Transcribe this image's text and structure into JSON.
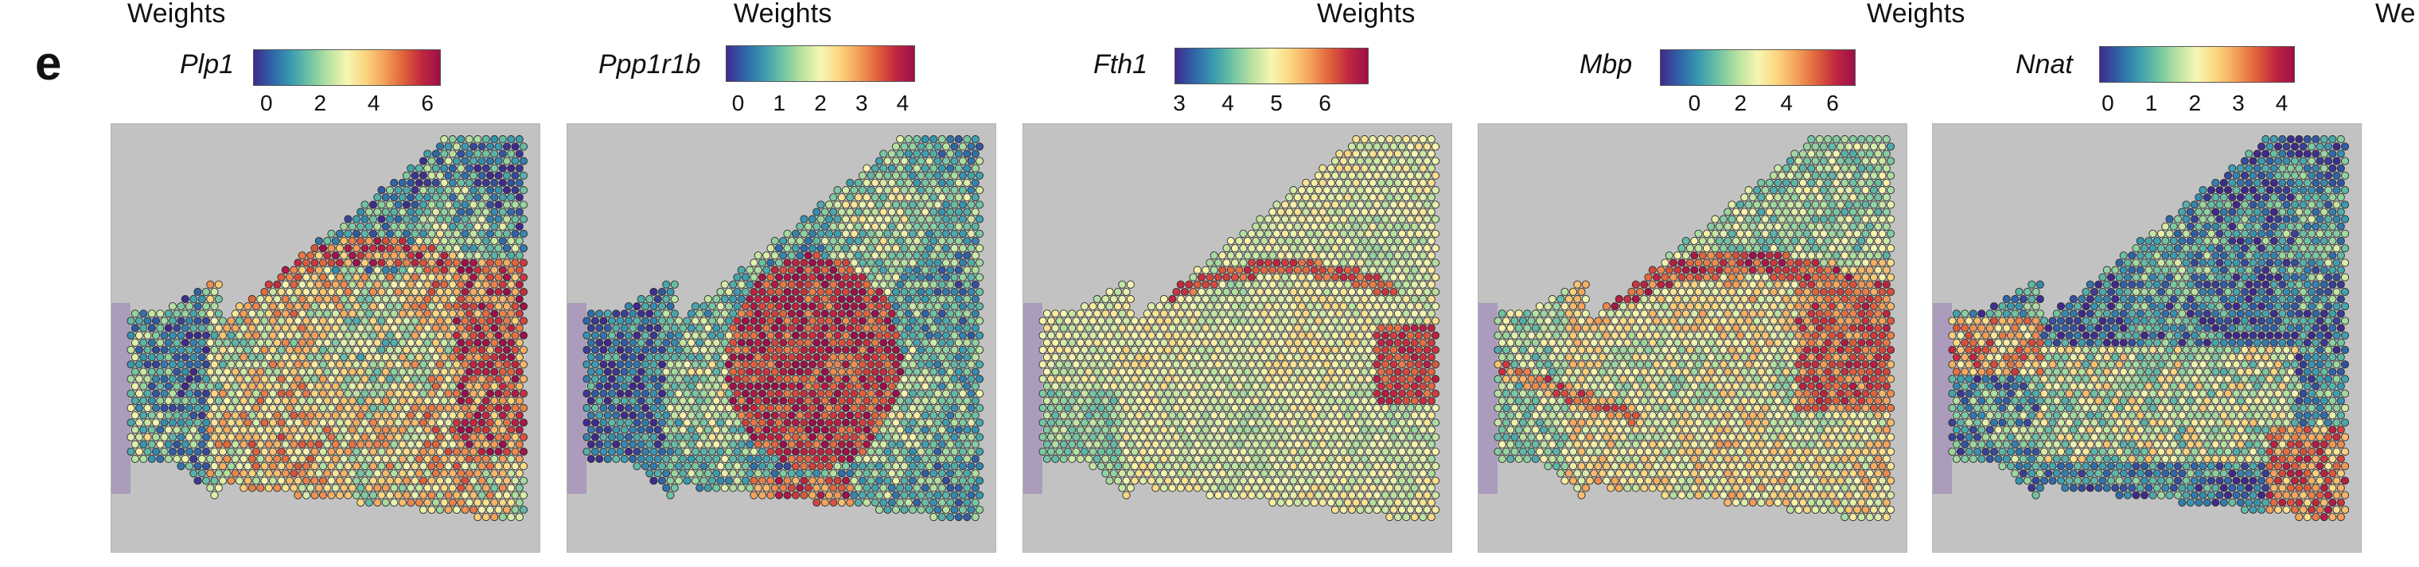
{
  "figure": {
    "panel_label": "e",
    "weights_label": "Weights",
    "weights_label_partial": "We"
  },
  "panels": [
    {
      "gene": "Plp1",
      "ticks": [
        "0",
        "2",
        "4",
        "6"
      ],
      "tick_values": [
        0,
        2,
        4,
        6
      ],
      "range": [
        -0.5,
        6.5
      ],
      "pattern": "plp1"
    },
    {
      "gene": "Ppp1r1b",
      "ticks": [
        "0",
        "1",
        "2",
        "3",
        "4"
      ],
      "tick_values": [
        0,
        1,
        2,
        3,
        4
      ],
      "range": [
        -0.3,
        4.3
      ],
      "pattern": "ppp1r1b"
    },
    {
      "gene": "Fth1",
      "ticks": [
        "3",
        "4",
        "5",
        "6"
      ],
      "tick_values": [
        3,
        4,
        5,
        6
      ],
      "range": [
        2.9,
        6.9
      ],
      "pattern": "fth1"
    },
    {
      "gene": "Mbp",
      "ticks": [
        "0",
        "2",
        "4",
        "6"
      ],
      "tick_values": [
        0,
        2,
        4,
        6
      ],
      "range": [
        -1.5,
        7.0
      ],
      "pattern": "mbp"
    },
    {
      "gene": "Nnat",
      "ticks": [
        "0",
        "1",
        "2",
        "3",
        "4"
      ],
      "tick_values": [
        0,
        1,
        2,
        3,
        4
      ],
      "range": [
        -0.2,
        4.3
      ],
      "pattern": "nnat"
    }
  ],
  "colormap": [
    "#3f2a8c",
    "#2f65a8",
    "#3a9bb0",
    "#70c4a3",
    "#b9e2a0",
    "#f6f6b2",
    "#fbd67f",
    "#f4a15a",
    "#e0643c",
    "#c2273f",
    "#9c0f4a"
  ]
}
